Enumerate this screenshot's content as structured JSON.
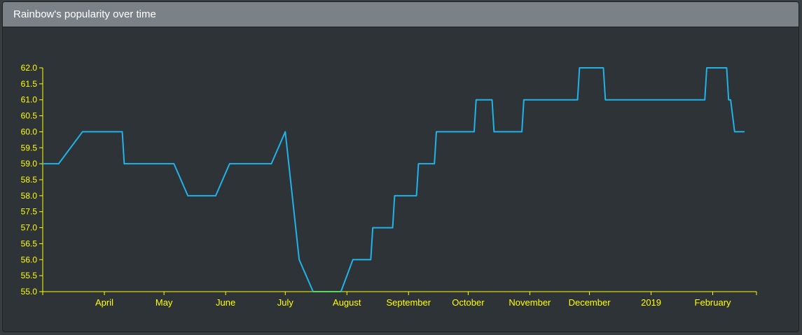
{
  "panel": {
    "title": "Rainbow's popularity over time"
  },
  "colors": {
    "axis": "#ffff00",
    "line": "#1fb3e8",
    "zero_segment": "#5dd85d",
    "header_bg": "#7a8288",
    "panel_bg": "#2e3338"
  },
  "chart_data": {
    "type": "line",
    "title": "",
    "xlabel": "",
    "ylabel": "",
    "ylim": [
      55.0,
      62.0
    ],
    "yticks": [
      "55.0",
      "55.5",
      "56.0",
      "56.5",
      "57.0",
      "57.5",
      "58.0",
      "58.5",
      "59.0",
      "59.5",
      "60.0",
      "60.5",
      "61.0",
      "61.5",
      "62.0"
    ],
    "xlim": [
      "2018-03-01",
      "2019-02-23"
    ],
    "xticks": [
      {
        "label": "April",
        "date": "2018-04-01"
      },
      {
        "label": "May",
        "date": "2018-05-01"
      },
      {
        "label": "June",
        "date": "2018-06-01"
      },
      {
        "label": "July",
        "date": "2018-07-01"
      },
      {
        "label": "August",
        "date": "2018-08-01"
      },
      {
        "label": "September",
        "date": "2018-09-01"
      },
      {
        "label": "October",
        "date": "2018-10-01"
      },
      {
        "label": "November",
        "date": "2018-11-01"
      },
      {
        "label": "December",
        "date": "2018-12-01"
      },
      {
        "label": "2019",
        "date": "2019-01-01"
      },
      {
        "label": "February",
        "date": "2019-02-01"
      }
    ],
    "grid": false,
    "series": [
      {
        "points": [
          [
            "2018-03-01",
            59
          ],
          [
            "2018-03-09",
            59
          ],
          [
            "2018-03-21",
            60
          ],
          [
            "2018-04-10",
            60
          ],
          [
            "2018-04-11",
            59
          ],
          [
            "2018-05-06",
            59
          ],
          [
            "2018-05-13",
            58
          ],
          [
            "2018-05-27",
            58
          ],
          [
            "2018-06-03",
            59
          ],
          [
            "2018-06-24",
            59
          ],
          [
            "2018-07-01",
            60
          ],
          [
            "2018-07-08",
            56
          ],
          [
            "2018-07-15",
            55
          ],
          [
            "2018-07-29",
            55
          ],
          [
            "2018-08-04",
            56
          ],
          [
            "2018-08-13",
            56
          ],
          [
            "2018-08-14",
            57
          ],
          [
            "2018-08-24",
            57
          ],
          [
            "2018-08-25",
            58
          ],
          [
            "2018-09-05",
            58
          ],
          [
            "2018-09-06",
            59
          ],
          [
            "2018-09-14",
            59
          ],
          [
            "2018-09-15",
            60
          ],
          [
            "2018-10-04",
            60
          ],
          [
            "2018-10-05",
            61
          ],
          [
            "2018-10-13",
            61
          ],
          [
            "2018-10-14",
            60
          ],
          [
            "2018-10-28",
            60
          ],
          [
            "2018-10-29",
            61
          ],
          [
            "2018-11-25",
            61
          ],
          [
            "2018-11-26",
            62
          ],
          [
            "2018-12-08",
            62
          ],
          [
            "2018-12-09",
            61
          ],
          [
            "2019-01-28",
            61
          ],
          [
            "2019-01-29",
            62
          ],
          [
            "2019-02-08",
            62
          ],
          [
            "2019-02-09",
            61
          ],
          [
            "2019-02-10",
            61
          ],
          [
            "2019-02-12",
            60
          ],
          [
            "2019-02-17",
            60
          ]
        ]
      }
    ]
  }
}
